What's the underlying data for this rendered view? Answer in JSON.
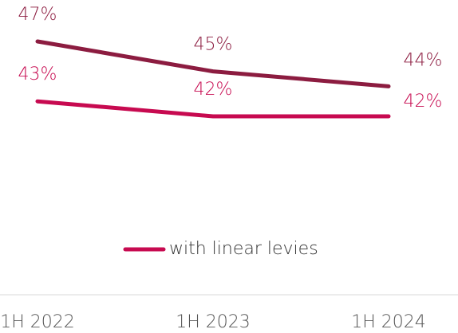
{
  "chart_data": {
    "type": "line",
    "categories": [
      "1H 2022",
      "1H 2023",
      "1H 2024"
    ],
    "series": [
      {
        "color": "#8c1c40",
        "values": [
          47,
          45,
          44
        ],
        "value_labels": [
          "47%",
          "45%",
          "44%"
        ]
      },
      {
        "name": "with linear levies",
        "color": "#c70a50",
        "values": [
          43,
          42,
          42
        ],
        "value_labels": [
          "43%",
          "42%",
          "42%"
        ]
      }
    ]
  }
}
